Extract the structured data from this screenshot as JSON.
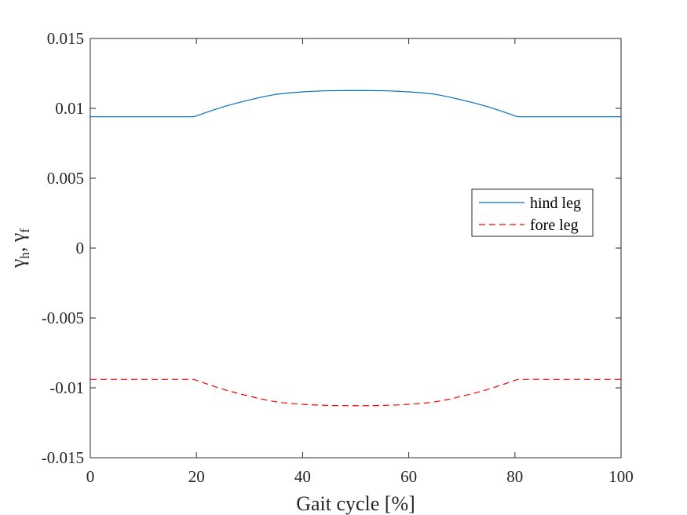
{
  "chart_data": {
    "type": "line",
    "xlabel": "Gait cycle [%]",
    "ylabel_parts": {
      "gamma": "γ",
      "sub_h": "h",
      "sep": ", ",
      "sub_f": "f"
    },
    "xlim": [
      0,
      100
    ],
    "ylim": [
      -0.015,
      0.015
    ],
    "xticks": [
      0,
      20,
      40,
      60,
      80,
      100
    ],
    "xtick_labels": [
      "0",
      "20",
      "40",
      "60",
      "80",
      "100"
    ],
    "yticks": [
      0.015,
      0.01,
      0.005,
      0,
      -0.005,
      -0.01,
      -0.015
    ],
    "ytick_labels": [
      "0.015",
      "0.01",
      "0.005",
      "0",
      "-0.005",
      "-0.01",
      "-0.015"
    ],
    "grid": false,
    "legend_position": "right",
    "series": [
      {
        "name": "hind leg",
        "color": "#0072BD",
        "style": "solid",
        "x": [
          0,
          19.5,
          25,
          30,
          35,
          40,
          45,
          50,
          55,
          60,
          65,
          70,
          75,
          80.5,
          100
        ],
        "y": [
          0.0094,
          0.0094,
          0.0101,
          0.0106,
          0.011,
          0.01118,
          0.01126,
          0.01128,
          0.01126,
          0.01118,
          0.011,
          0.0106,
          0.0101,
          0.0094,
          0.0094
        ]
      },
      {
        "name": "fore leg",
        "color": "#FF0000",
        "style": "dashed",
        "x": [
          0,
          19.5,
          25,
          30,
          35,
          40,
          45,
          50,
          55,
          60,
          65,
          70,
          75,
          80.5,
          100
        ],
        "y": [
          -0.0094,
          -0.0094,
          -0.0101,
          -0.0106,
          -0.011,
          -0.01118,
          -0.01126,
          -0.01128,
          -0.01126,
          -0.01118,
          -0.011,
          -0.0106,
          -0.0101,
          -0.0094,
          -0.0094
        ]
      }
    ]
  }
}
